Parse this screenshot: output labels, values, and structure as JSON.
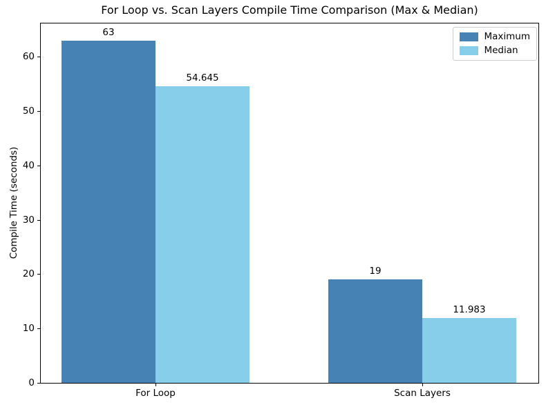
{
  "chart_data": {
    "type": "bar",
    "title": "For Loop vs. Scan Layers Compile Time Comparison (Max & Median)",
    "xlabel": "",
    "ylabel": "Compile Time (seconds)",
    "categories": [
      "For Loop",
      "Scan Layers"
    ],
    "series": [
      {
        "name": "Maximum",
        "color": "#4682B4",
        "values": [
          63,
          19
        ]
      },
      {
        "name": "Median",
        "color": "#87CEEB",
        "values": [
          54.645,
          11.983
        ]
      }
    ],
    "value_labels": {
      "maximum": [
        "63",
        "19"
      ],
      "median": [
        "54.645",
        "11.983"
      ]
    },
    "yticks": [
      0,
      10,
      20,
      30,
      40,
      50,
      60
    ],
    "ylim": [
      0,
      66.15
    ],
    "grid": false,
    "legend_position": "upper right",
    "background_color": "#ffffff",
    "text_color": "#000000"
  }
}
